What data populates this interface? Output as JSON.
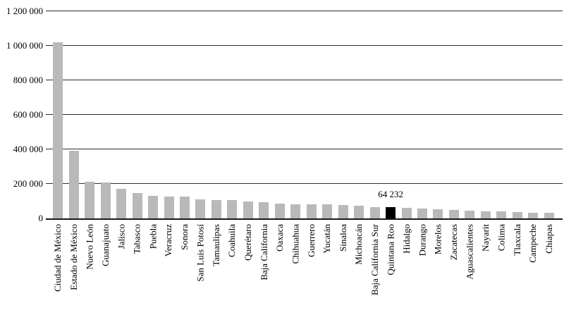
{
  "chart_data": {
    "type": "bar",
    "title": "",
    "xlabel": "",
    "ylabel": "",
    "ylim": [
      0,
      1200000
    ],
    "grid": true,
    "legend": false,
    "bar_color": "#b9b9b9",
    "highlight_color": "#000000",
    "categories": [
      "Ciudad de México",
      "Estado de México",
      "Nuevo León",
      "Guanajuato",
      "Jalisco",
      "Tabasco",
      "Puebla",
      "Veracruz",
      "Sonora",
      "San Luis Potosí",
      "Tamaulipas",
      "Coahuila",
      "Querétaro",
      "Baja California",
      "Oaxaca",
      "Chihuahua",
      "Guerrero",
      "Yucatán",
      "Sinaloa",
      "Michoacán",
      "Baja California Sur",
      "Quintana Roo",
      "Hidalgo",
      "Durango",
      "Morelos",
      "Zacatecas",
      "Aguascalientes",
      "Nayarit",
      "Colima",
      "Tlaxcala",
      "Campeche",
      "Chiapas"
    ],
    "values": [
      1020000,
      392000,
      213000,
      207000,
      170000,
      148000,
      130000,
      128000,
      127000,
      111000,
      108000,
      105000,
      99000,
      92000,
      84000,
      82000,
      81000,
      80000,
      78000,
      75000,
      67000,
      64232,
      61000,
      57000,
      54000,
      50000,
      47000,
      42000,
      40000,
      37000,
      33000,
      31000
    ],
    "highlight_category": "Quintana Roo",
    "annotation": {
      "category": "Quintana Roo",
      "label": "64 232"
    },
    "y_ticks": [
      {
        "value": 0,
        "label": "0"
      },
      {
        "value": 200000,
        "label": "200 000"
      },
      {
        "value": 400000,
        "label": "400 000"
      },
      {
        "value": 600000,
        "label": "600 000"
      },
      {
        "value": 800000,
        "label": "800 000"
      },
      {
        "value": 1000000,
        "label": "1 000 000"
      },
      {
        "value": 1200000,
        "label": "1 200 000"
      }
    ]
  }
}
